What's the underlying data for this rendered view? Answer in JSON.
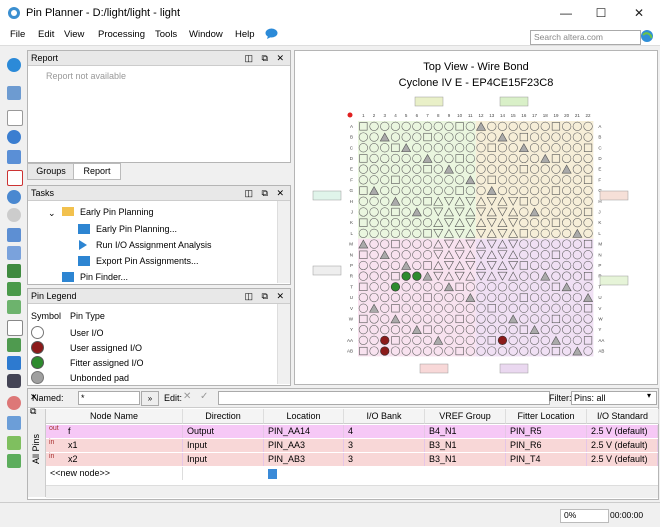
{
  "window": {
    "title": "Pin Planner - D:/light/light - light"
  },
  "menu": {
    "items": [
      "File",
      "Edit",
      "View",
      "Processing",
      "Tools",
      "Window",
      "Help"
    ]
  },
  "search": {
    "placeholder": "Search altera.com"
  },
  "report": {
    "title": "Report",
    "message": "Report not available",
    "tabs": [
      "Groups",
      "Report"
    ]
  },
  "tasks": {
    "title": "Tasks",
    "items": [
      {
        "label": "Early Pin Planning"
      },
      {
        "label": "Early Pin Planning..."
      },
      {
        "label": "Run I/O Assignment Analysis"
      },
      {
        "label": "Export Pin Assignments..."
      },
      {
        "label": "Pin Finder..."
      }
    ]
  },
  "legend": {
    "title": "Pin Legend",
    "col_symbol": "Symbol",
    "col_type": "Pin Type",
    "items": [
      {
        "label": "User I/O",
        "color": "#ffffff"
      },
      {
        "label": "User assigned I/O",
        "color": "#8b1a1a"
      },
      {
        "label": "Fitter assigned I/O",
        "color": "#2e8b2e"
      },
      {
        "label": "Unbonded pad",
        "color": "#a0a0a0"
      }
    ]
  },
  "chip": {
    "title": "Top View - Wire Bond",
    "subtitle": "Cyclone IV E - EP4CE15F23C8",
    "col_labels": [
      "1",
      "2",
      "3",
      "4",
      "5",
      "6",
      "7",
      "8",
      "9",
      "10",
      "11",
      "12",
      "13",
      "14",
      "15",
      "16",
      "17",
      "18",
      "19",
      "20",
      "21",
      "22"
    ],
    "row_labels": [
      "A",
      "B",
      "C",
      "D",
      "E",
      "F",
      "G",
      "H",
      "J",
      "K",
      "L",
      "M",
      "N",
      "P",
      "R",
      "T",
      "U",
      "V",
      "W",
      "Y",
      "AA",
      "AB"
    ]
  },
  "nodes": {
    "named_label": "Named:",
    "named_value": "*",
    "edit_label": "Edit:",
    "filter_label": "Filter:",
    "filter_value": "Pins: all",
    "side_label": "All Pins",
    "columns": [
      "Node Name",
      "Direction",
      "Location",
      "I/O Bank",
      "VREF Group",
      "Fitter Location",
      "I/O Standard"
    ],
    "rows": [
      {
        "type": "out",
        "name": "f",
        "direction": "Output",
        "location": "PIN_AA14",
        "bank": "4",
        "vref": "B4_N1",
        "fitter": "PIN_R5",
        "standard": "2.5 V (default)"
      },
      {
        "type": "in",
        "name": "x1",
        "direction": "Input",
        "location": "PIN_AA3",
        "bank": "3",
        "vref": "B3_N1",
        "fitter": "PIN_R6",
        "standard": "2.5 V (default)"
      },
      {
        "type": "in",
        "name": "x2",
        "direction": "Input",
        "location": "PIN_AB3",
        "bank": "3",
        "vref": "B3_N1",
        "fitter": "PIN_T4",
        "standard": "2.5 V (default)"
      }
    ],
    "new_node": "<<new node>>"
  },
  "status": {
    "progress": "0%",
    "time": "00:00:00"
  }
}
